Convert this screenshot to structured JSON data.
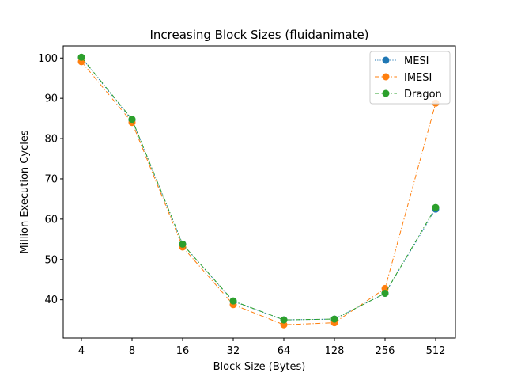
{
  "chart_data": {
    "type": "line",
    "title": "Increasing Block Sizes (fluidanimate)",
    "xlabel": "Block Size (Bytes)",
    "ylabel": "Million Execution Cycles",
    "categories": [
      "4",
      "8",
      "16",
      "32",
      "64",
      "128",
      "256",
      "512"
    ],
    "yticks": [
      "40",
      "50",
      "60",
      "70",
      "80",
      "90",
      "100"
    ],
    "ylim": [
      30.5,
      103.0
    ],
    "grid": false,
    "legend_position": "top-right",
    "series": [
      {
        "name": "MESI",
        "color": "#1f77b4",
        "linestyle": "dotted",
        "values": [
          100.1,
          84.6,
          53.8,
          39.6,
          35.0,
          35.2,
          41.6,
          62.5
        ]
      },
      {
        "name": "IMESI",
        "color": "#ff7f0e",
        "linestyle": "dashdot",
        "values": [
          99.1,
          84.0,
          53.1,
          38.8,
          33.8,
          34.3,
          42.8,
          88.8
        ]
      },
      {
        "name": "Dragon",
        "color": "#2ca02c",
        "linestyle": "dashdot",
        "values": [
          100.2,
          84.8,
          53.8,
          39.7,
          35.0,
          35.2,
          41.6,
          62.9
        ]
      }
    ]
  }
}
